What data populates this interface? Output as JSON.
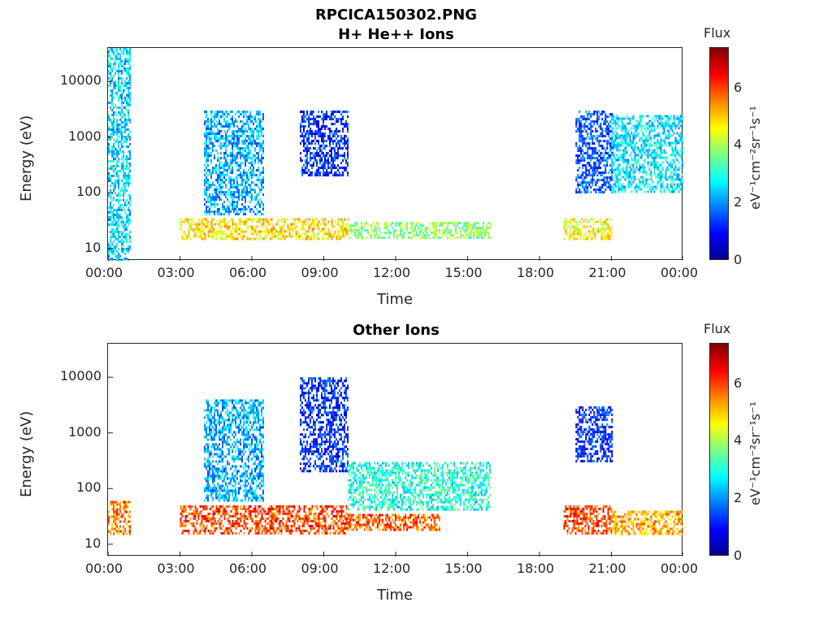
{
  "figure": {
    "title_line1": "RPCICA150302.PNG",
    "colorbar_title": "Flux",
    "colorbar_unit": "eV⁻¹cm⁻²sr⁻¹s⁻¹",
    "colorbar_ticks": [
      "0",
      "2",
      "4",
      "6"
    ]
  },
  "chart_data": [
    {
      "type": "heatmap",
      "title": "H+ He++ Ions",
      "xlabel": "Time",
      "ylabel": "Energy (eV)",
      "x_tick_labels": [
        "00:00",
        "03:00",
        "06:00",
        "09:00",
        "12:00",
        "15:00",
        "18:00",
        "21:00",
        "00:00"
      ],
      "y_tick_labels": [
        "10",
        "100",
        "1000",
        "10000"
      ],
      "y_scale": "log",
      "ylim": [
        6,
        40000
      ],
      "xlim_hours": [
        0,
        24
      ],
      "color_range": [
        0,
        7.4
      ],
      "colormap": "jet",
      "data_intervals_hours": [
        [
          0.0,
          0.9
        ],
        [
          3.0,
          10.0
        ],
        [
          10.0,
          15.9
        ],
        [
          19.0,
          21.0
        ],
        [
          21.0,
          24.0
        ]
      ],
      "regions": [
        {
          "t0": 0.0,
          "t1": 0.9,
          "e0": 6,
          "e1": 40000,
          "flux": 2.5
        },
        {
          "t0": 3.0,
          "t1": 10.0,
          "e0": 15,
          "e1": 35,
          "flux": 4.8
        },
        {
          "t0": 4.0,
          "t1": 6.5,
          "e0": 40,
          "e1": 3000,
          "flux": 2.2
        },
        {
          "t0": 8.0,
          "t1": 10.0,
          "e0": 200,
          "e1": 3000,
          "flux": 1.2
        },
        {
          "t0": 10.0,
          "t1": 15.9,
          "e0": 15,
          "e1": 30,
          "flux": 3.8
        },
        {
          "t0": 19.0,
          "t1": 21.0,
          "e0": 15,
          "e1": 35,
          "flux": 4.6
        },
        {
          "t0": 19.5,
          "t1": 21.0,
          "e0": 100,
          "e1": 3000,
          "flux": 1.5
        },
        {
          "t0": 21.0,
          "t1": 24.0,
          "e0": 100,
          "e1": 2500,
          "flux": 2.6
        }
      ]
    },
    {
      "type": "heatmap",
      "title": "Other Ions",
      "xlabel": "Time",
      "ylabel": "Energy (eV)",
      "x_tick_labels": [
        "00:00",
        "03:00",
        "06:00",
        "09:00",
        "12:00",
        "15:00",
        "18:00",
        "21:00",
        "00:00"
      ],
      "y_tick_labels": [
        "10",
        "100",
        "1000",
        "10000"
      ],
      "y_scale": "log",
      "ylim": [
        6,
        40000
      ],
      "xlim_hours": [
        0,
        24
      ],
      "color_range": [
        0,
        7.4
      ],
      "colormap": "jet",
      "data_intervals_hours": [
        [
          0.0,
          0.9
        ],
        [
          3.0,
          10.0
        ],
        [
          10.0,
          15.9
        ],
        [
          19.0,
          21.0
        ],
        [
          21.0,
          24.0
        ]
      ],
      "regions": [
        {
          "t0": 0.0,
          "t1": 0.9,
          "e0": 15,
          "e1": 60,
          "flux": 5.6
        },
        {
          "t0": 3.0,
          "t1": 10.0,
          "e0": 15,
          "e1": 50,
          "flux": 6.0
        },
        {
          "t0": 4.0,
          "t1": 6.5,
          "e0": 60,
          "e1": 4000,
          "flux": 2.2
        },
        {
          "t0": 8.0,
          "t1": 10.0,
          "e0": 200,
          "e1": 10000,
          "flux": 1.2
        },
        {
          "t0": 10.0,
          "t1": 13.8,
          "e0": 18,
          "e1": 35,
          "flux": 5.8
        },
        {
          "t0": 10.0,
          "t1": 15.9,
          "e0": 40,
          "e1": 300,
          "flux": 3.0
        },
        {
          "t0": 19.0,
          "t1": 21.0,
          "e0": 15,
          "e1": 50,
          "flux": 6.0
        },
        {
          "t0": 19.5,
          "t1": 21.0,
          "e0": 300,
          "e1": 3000,
          "flux": 1.2
        },
        {
          "t0": 21.0,
          "t1": 24.0,
          "e0": 15,
          "e1": 40,
          "flux": 5.2
        }
      ]
    }
  ]
}
